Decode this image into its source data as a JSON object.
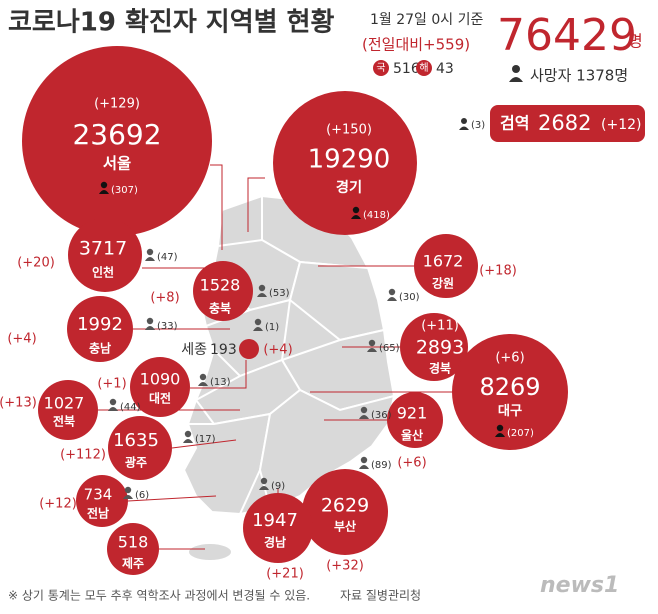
{
  "header": {
    "title": "코로나19 확진자 지역별 현황",
    "date": "1월 27일 0시 기준",
    "daily": "(전일대비+559)",
    "total": "76429",
    "total_unit": "명",
    "domestic_label": "국",
    "domestic": "516",
    "overseas_label": "해",
    "overseas": "43",
    "deaths": "사망자 1378명",
    "quarantine_deaths": "(3)",
    "quarantine_label": "검역",
    "quarantine": "2682",
    "quarantine_delta": "(+12)"
  },
  "regions": [
    {
      "name": "서울",
      "cases": "23692",
      "delta": "(+129)",
      "deaths": "(307)"
    },
    {
      "name": "경기",
      "cases": "19290",
      "delta": "(+150)",
      "deaths": "(418)"
    },
    {
      "name": "인천",
      "cases": "3717",
      "delta": "(+20)",
      "deaths": "(47)"
    },
    {
      "name": "충북",
      "cases": "1528",
      "delta": "(+8)",
      "deaths": "(53)"
    },
    {
      "name": "강원",
      "cases": "1672",
      "delta": "(+18)",
      "deaths": "(30)"
    },
    {
      "name": "충남",
      "cases": "1992",
      "delta": "(+4)",
      "deaths": "(33)"
    },
    {
      "name": "세종",
      "cases": "193",
      "delta": "(+4)",
      "deaths": "(1)"
    },
    {
      "name": "경북",
      "cases": "2893",
      "delta": "(+11)",
      "deaths": "(65)"
    },
    {
      "name": "대구",
      "cases": "8269",
      "delta": "(+6)",
      "deaths": "(207)"
    },
    {
      "name": "대전",
      "cases": "1090",
      "delta": "(+1)",
      "deaths": "(13)"
    },
    {
      "name": "전북",
      "cases": "1027",
      "delta": "(+13)",
      "deaths": "(44)"
    },
    {
      "name": "울산",
      "cases": "921",
      "delta": "(+6)",
      "deaths": "(36)"
    },
    {
      "name": "광주",
      "cases": "1635",
      "delta": "(+112)",
      "deaths": "(17)"
    },
    {
      "name": "부산",
      "cases": "2629",
      "delta": "(+32)",
      "deaths": "(89)"
    },
    {
      "name": "경남",
      "cases": "1947",
      "delta": "(+21)",
      "deaths": "(9)"
    },
    {
      "name": "전남",
      "cases": "734",
      "delta": "(+12)",
      "deaths": "(6)"
    },
    {
      "name": "제주",
      "cases": "518"
    }
  ],
  "footer": {
    "note": "※ 상기 통계는 모두 추후 역학조사 과정에서 변경될 수 있음.",
    "source": "자료 질병관리청",
    "logo": "news1"
  }
}
